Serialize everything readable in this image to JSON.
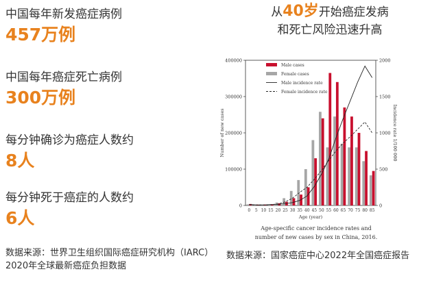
{
  "stats": [
    {
      "label": "中国每年新发癌症病例",
      "value": "457万例"
    },
    {
      "label": "中国每年癌症死亡病例",
      "value": "300万例"
    },
    {
      "label": "每分钟确诊为癌症人数约",
      "value": "8人"
    },
    {
      "label": "每分钟死于癌症的人数约",
      "value": "6人"
    }
  ],
  "source_left": "数据来源：世界卫生组织国际癌症研究机构（IARC）2020年全球最新癌症负担数据",
  "right_title": {
    "prefix": "从",
    "accent": "40岁",
    "suffix": "开始癌症发病",
    "line2": "和死亡风险迅速升高"
  },
  "source_right": "数据来源：国家癌症中心2022年全国癌症报告",
  "colors": {
    "accent": "#e8821e",
    "male": "#c8102e",
    "female": "#a6a6a6"
  },
  "chart_data": {
    "type": "bar",
    "xlabel": "Age (year)",
    "ylabel": "Number of new cases",
    "y2label": "Incidence rate 1/100 000",
    "ylim": [
      0,
      400000
    ],
    "y2lim": [
      0,
      2000
    ],
    "yticks": [
      "0",
      "100000",
      "200000",
      "300000",
      "400000"
    ],
    "y2ticks": [
      "0",
      "500",
      "1000",
      "1500",
      "2000"
    ],
    "categories": [
      "0",
      "5",
      "10",
      "15",
      "20",
      "25",
      "30",
      "35",
      "40",
      "45",
      "50",
      "55",
      "60",
      "65",
      "70",
      "75",
      "80",
      "85"
    ],
    "series": [
      {
        "name": "Male cases",
        "kind": "bar",
        "color": "#c8102e",
        "values": [
          4000,
          2000,
          2000,
          3000,
          6000,
          10000,
          20000,
          30000,
          50000,
          130000,
          240000,
          365000,
          340000,
          270000,
          245000,
          200000,
          150000,
          95000
        ]
      },
      {
        "name": "Female cases",
        "kind": "bar",
        "color": "#a6a6a6",
        "values": [
          3000,
          2000,
          2000,
          3000,
          8000,
          20000,
          40000,
          70000,
          100000,
          180000,
          258000,
          160000,
          245000,
          170000,
          160000,
          160000,
          122000,
          83000
        ]
      },
      {
        "name": "Male incidence rate",
        "kind": "line",
        "axis": "right",
        "values": [
          15,
          8,
          8,
          12,
          15,
          25,
          40,
          70,
          130,
          260,
          430,
          640,
          930,
          1200,
          1450,
          1700,
          1920,
          1760
        ]
      },
      {
        "name": "Female incidence rate",
        "kind": "line",
        "dashed": true,
        "axis": "right",
        "values": [
          12,
          8,
          8,
          12,
          20,
          50,
          100,
          180,
          250,
          360,
          480,
          620,
          750,
          860,
          950,
          1050,
          1150,
          1000
        ]
      }
    ],
    "legend_position": "top-left",
    "caption": "Age-specific cancer incidence rates and number of new cases by sex in China, 2016."
  }
}
